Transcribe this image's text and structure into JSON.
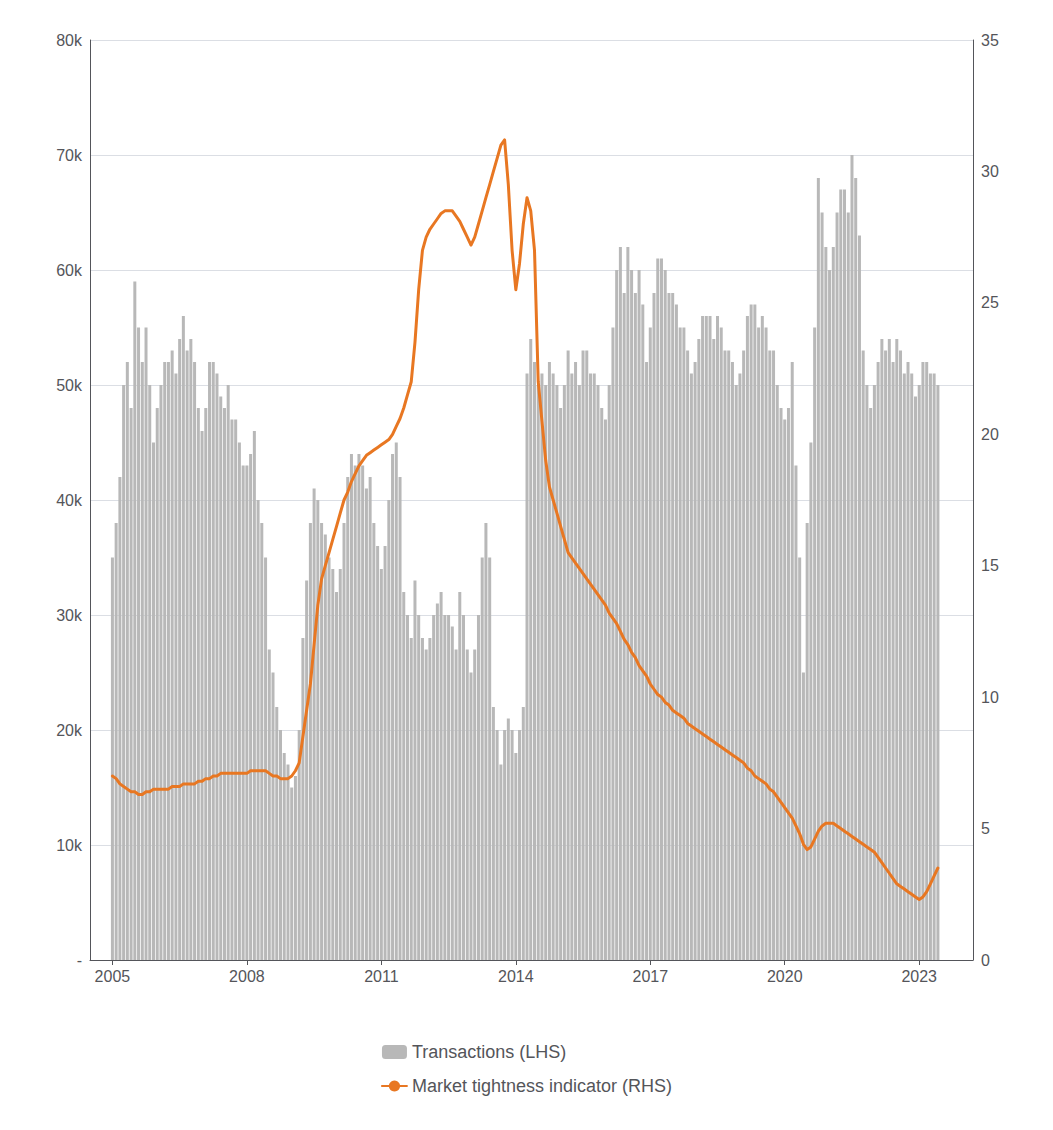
{
  "chart_data": {
    "type": "bar",
    "x": [
      2005.0,
      2005.083,
      2005.167,
      2005.25,
      2005.333,
      2005.417,
      2005.5,
      2005.583,
      2005.667,
      2005.75,
      2005.833,
      2005.917,
      2006.0,
      2006.083,
      2006.167,
      2006.25,
      2006.333,
      2006.417,
      2006.5,
      2006.583,
      2006.667,
      2006.75,
      2006.833,
      2006.917,
      2007.0,
      2007.083,
      2007.167,
      2007.25,
      2007.333,
      2007.417,
      2007.5,
      2007.583,
      2007.667,
      2007.75,
      2007.833,
      2007.917,
      2008.0,
      2008.083,
      2008.167,
      2008.25,
      2008.333,
      2008.417,
      2008.5,
      2008.583,
      2008.667,
      2008.75,
      2008.833,
      2008.917,
      2009.0,
      2009.083,
      2009.167,
      2009.25,
      2009.333,
      2009.417,
      2009.5,
      2009.583,
      2009.667,
      2009.75,
      2009.833,
      2009.917,
      2010.0,
      2010.083,
      2010.167,
      2010.25,
      2010.333,
      2010.417,
      2010.5,
      2010.583,
      2010.667,
      2010.75,
      2010.833,
      2010.917,
      2011.0,
      2011.083,
      2011.167,
      2011.25,
      2011.333,
      2011.417,
      2011.5,
      2011.583,
      2011.667,
      2011.75,
      2011.833,
      2011.917,
      2012.0,
      2012.083,
      2012.167,
      2012.25,
      2012.333,
      2012.417,
      2012.5,
      2012.583,
      2012.667,
      2012.75,
      2012.833,
      2012.917,
      2013.0,
      2013.083,
      2013.167,
      2013.25,
      2013.333,
      2013.417,
      2013.5,
      2013.583,
      2013.667,
      2013.75,
      2013.833,
      2013.917,
      2014.0,
      2014.083,
      2014.167,
      2014.25,
      2014.333,
      2014.417,
      2014.5,
      2014.583,
      2014.667,
      2014.75,
      2014.833,
      2014.917,
      2015.0,
      2015.083,
      2015.167,
      2015.25,
      2015.333,
      2015.417,
      2015.5,
      2015.583,
      2015.667,
      2015.75,
      2015.833,
      2015.917,
      2016.0,
      2016.083,
      2016.167,
      2016.25,
      2016.333,
      2016.417,
      2016.5,
      2016.583,
      2016.667,
      2016.75,
      2016.833,
      2016.917,
      2017.0,
      2017.083,
      2017.167,
      2017.25,
      2017.333,
      2017.417,
      2017.5,
      2017.583,
      2017.667,
      2017.75,
      2017.833,
      2017.917,
      2018.0,
      2018.083,
      2018.167,
      2018.25,
      2018.333,
      2018.417,
      2018.5,
      2018.583,
      2018.667,
      2018.75,
      2018.833,
      2018.917,
      2019.0,
      2019.083,
      2019.167,
      2019.25,
      2019.333,
      2019.417,
      2019.5,
      2019.583,
      2019.667,
      2019.75,
      2019.833,
      2019.917,
      2020.0,
      2020.083,
      2020.167,
      2020.25,
      2020.333,
      2020.417,
      2020.5,
      2020.583,
      2020.667,
      2020.75,
      2020.833,
      2020.917,
      2021.0,
      2021.083,
      2021.167,
      2021.25,
      2021.333,
      2021.417,
      2021.5,
      2021.583,
      2021.667,
      2021.75,
      2021.833,
      2021.917,
      2022.0,
      2022.083,
      2022.167,
      2022.25,
      2022.333,
      2022.417,
      2022.5,
      2022.583,
      2022.667,
      2022.75,
      2022.833,
      2022.917,
      2023.0,
      2023.083,
      2023.167,
      2023.25,
      2023.333,
      2023.417
    ],
    "series": [
      {
        "name": "Transactions (LHS)",
        "type": "bar",
        "color": "#b8b8b8",
        "values": [
          35000,
          38000,
          42000,
          50000,
          52000,
          48000,
          59000,
          55000,
          52000,
          55000,
          50000,
          45000,
          48000,
          50000,
          52000,
          52000,
          53000,
          51000,
          54000,
          56000,
          53000,
          54000,
          52000,
          48000,
          46000,
          48000,
          52000,
          52000,
          51000,
          49000,
          48000,
          50000,
          47000,
          47000,
          45000,
          43000,
          43000,
          44000,
          46000,
          40000,
          38000,
          35000,
          27000,
          25000,
          22000,
          20000,
          18000,
          17000,
          15000,
          16000,
          20000,
          28000,
          33000,
          38000,
          41000,
          40000,
          38000,
          37000,
          35000,
          34000,
          32000,
          34000,
          38000,
          42000,
          44000,
          43000,
          44000,
          43000,
          41000,
          42000,
          38000,
          36000,
          34000,
          36000,
          40000,
          44000,
          45000,
          42000,
          32000,
          30000,
          28000,
          33000,
          30000,
          28000,
          27000,
          28000,
          30000,
          31000,
          32000,
          30000,
          30000,
          29000,
          27000,
          32000,
          30000,
          27000,
          25000,
          27000,
          30000,
          35000,
          38000,
          35000,
          22000,
          20000,
          17000,
          20000,
          21000,
          20000,
          18000,
          20000,
          22000,
          51000,
          54000,
          52000,
          50000,
          51000,
          50000,
          52000,
          51000,
          50000,
          48000,
          50000,
          53000,
          51000,
          52000,
          50000,
          53000,
          53000,
          51000,
          51000,
          50000,
          48000,
          47000,
          50000,
          55000,
          60000,
          62000,
          58000,
          62000,
          60000,
          58000,
          60000,
          57000,
          52000,
          55000,
          58000,
          61000,
          61000,
          60000,
          58000,
          58000,
          57000,
          55000,
          55000,
          53000,
          51000,
          52000,
          54000,
          56000,
          56000,
          56000,
          54000,
          56000,
          55000,
          53000,
          53000,
          52000,
          50000,
          51000,
          53000,
          56000,
          57000,
          57000,
          55000,
          56000,
          55000,
          53000,
          53000,
          50000,
          48000,
          47000,
          48000,
          52000,
          43000,
          35000,
          25000,
          38000,
          45000,
          55000,
          68000,
          65000,
          62000,
          60000,
          62000,
          65000,
          67000,
          67000,
          65000,
          70000,
          68000,
          63000,
          53000,
          50000,
          48000,
          50000,
          52000,
          54000,
          53000,
          54000,
          52000,
          54000,
          53000,
          51000,
          52000,
          51000,
          49000,
          50000,
          52000,
          52000,
          51000,
          51000,
          50000
        ]
      },
      {
        "name": "Market tightness indicator (RHS)",
        "type": "line",
        "color": "#e87722",
        "axis": "y2",
        "values": [
          7.0,
          6.9,
          6.7,
          6.6,
          6.5,
          6.4,
          6.4,
          6.3,
          6.3,
          6.4,
          6.4,
          6.5,
          6.5,
          6.5,
          6.5,
          6.5,
          6.6,
          6.6,
          6.6,
          6.7,
          6.7,
          6.7,
          6.7,
          6.8,
          6.8,
          6.9,
          6.9,
          7.0,
          7.0,
          7.1,
          7.1,
          7.1,
          7.1,
          7.1,
          7.1,
          7.1,
          7.1,
          7.2,
          7.2,
          7.2,
          7.2,
          7.2,
          7.1,
          7.0,
          7.0,
          6.9,
          6.9,
          6.9,
          7.0,
          7.2,
          7.5,
          8.5,
          9.5,
          10.5,
          12.0,
          13.5,
          14.5,
          15.0,
          15.5,
          16.0,
          16.5,
          17.0,
          17.5,
          17.8,
          18.2,
          18.5,
          18.8,
          19.0,
          19.2,
          19.3,
          19.4,
          19.5,
          19.6,
          19.7,
          19.8,
          20.0,
          20.3,
          20.6,
          21.0,
          21.5,
          22.0,
          23.5,
          25.5,
          27.0,
          27.5,
          27.8,
          28.0,
          28.2,
          28.4,
          28.5,
          28.5,
          28.5,
          28.3,
          28.1,
          27.8,
          27.5,
          27.2,
          27.5,
          28.0,
          28.5,
          29.0,
          29.5,
          30.0,
          30.5,
          31.0,
          31.2,
          29.5,
          27.0,
          25.5,
          26.5,
          28.0,
          29.0,
          28.5,
          27.0,
          22.0,
          20.5,
          19.0,
          18.0,
          17.5,
          17.0,
          16.5,
          16.0,
          15.5,
          15.3,
          15.1,
          14.9,
          14.7,
          14.5,
          14.3,
          14.1,
          13.9,
          13.7,
          13.5,
          13.2,
          13.0,
          12.8,
          12.5,
          12.2,
          12.0,
          11.7,
          11.5,
          11.2,
          11.0,
          10.8,
          10.5,
          10.3,
          10.1,
          10.0,
          9.8,
          9.7,
          9.5,
          9.4,
          9.3,
          9.2,
          9.0,
          8.9,
          8.8,
          8.7,
          8.6,
          8.5,
          8.4,
          8.3,
          8.2,
          8.1,
          8.0,
          7.9,
          7.8,
          7.7,
          7.6,
          7.5,
          7.3,
          7.2,
          7.0,
          6.9,
          6.8,
          6.7,
          6.5,
          6.4,
          6.2,
          6.0,
          5.8,
          5.6,
          5.4,
          5.1,
          4.8,
          4.4,
          4.2,
          4.3,
          4.6,
          4.9,
          5.1,
          5.2,
          5.2,
          5.2,
          5.1,
          5.0,
          4.9,
          4.8,
          4.7,
          4.6,
          4.5,
          4.4,
          4.3,
          4.2,
          4.1,
          3.9,
          3.7,
          3.5,
          3.3,
          3.1,
          2.9,
          2.8,
          2.7,
          2.6,
          2.5,
          2.4,
          2.3,
          2.4,
          2.6,
          2.9,
          3.2,
          3.5
        ]
      }
    ],
    "xlim": [
      2004.5,
      2024.2
    ],
    "xticks": [
      2005,
      2008,
      2011,
      2014,
      2017,
      2020,
      2023
    ],
    "ylim": [
      0,
      80000
    ],
    "yticks": [
      {
        "value": 0,
        "label": "-"
      },
      {
        "value": 10000,
        "label": "10k"
      },
      {
        "value": 20000,
        "label": "20k"
      },
      {
        "value": 30000,
        "label": "30k"
      },
      {
        "value": 40000,
        "label": "40k"
      },
      {
        "value": 50000,
        "label": "50k"
      },
      {
        "value": 60000,
        "label": "60k"
      },
      {
        "value": 70000,
        "label": "70k"
      },
      {
        "value": 80000,
        "label": "80k"
      }
    ],
    "y2lim": [
      0,
      35
    ],
    "y2ticks": [
      0,
      5,
      10,
      15,
      20,
      25,
      30,
      35
    ],
    "grid": true,
    "legend": "bottom"
  }
}
